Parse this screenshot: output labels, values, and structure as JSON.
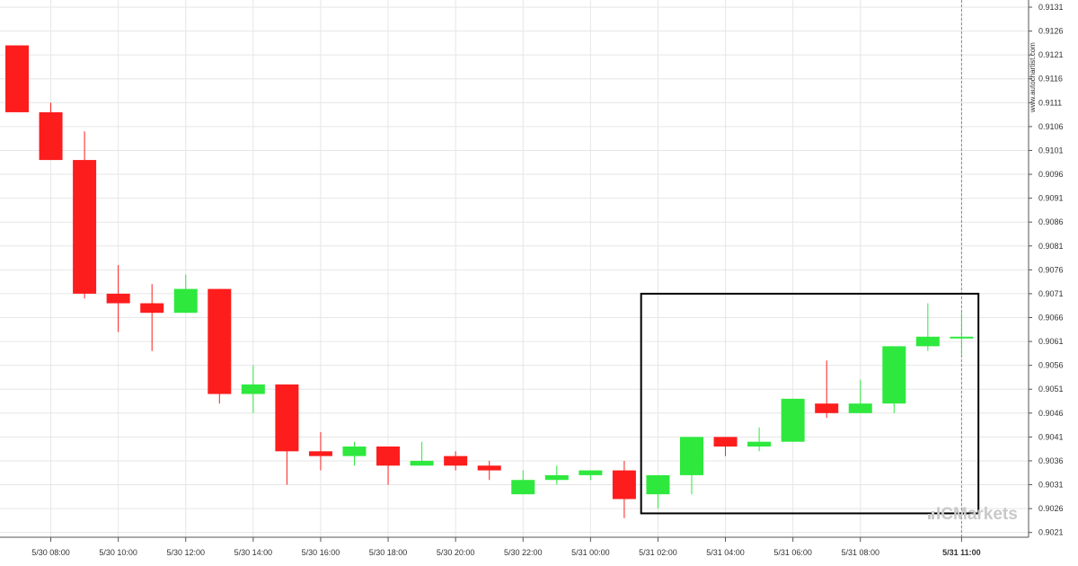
{
  "watermark": "www.autochartist.com",
  "brand": {
    "prefix": "IC",
    "suffix": "Markets"
  },
  "colors": {
    "up": "#2ee83e",
    "down": "#fd1d1d",
    "grid": "#e6e6e6",
    "axis": "#555555",
    "pattern_box": "#000000",
    "brand": "#c9c9c9"
  },
  "chart_data": {
    "type": "candlestick",
    "y_range": [
      0.902,
      0.9131
    ],
    "y_ticks": [
      "0.9131",
      "0.9126",
      "0.9121",
      "0.9116",
      "0.9111",
      "0.9106",
      "0.9101",
      "0.9096",
      "0.9091",
      "0.9086",
      "0.9081",
      "0.9076",
      "0.9071",
      "0.9066",
      "0.9061",
      "0.9056",
      "0.9051",
      "0.9046",
      "0.9041",
      "0.9036",
      "0.9031",
      "0.9026",
      "0.9021"
    ],
    "x_ticks": [
      "5/30 08:00",
      "5/30 10:00",
      "5/30 12:00",
      "5/30 14:00",
      "5/30 16:00",
      "5/30 18:00",
      "5/30 20:00",
      "5/30 22:00",
      "5/31 00:00",
      "5/31 02:00",
      "5/31 04:00",
      "5/31 06:00",
      "5/31 08:00",
      "5/31 11:00"
    ],
    "x_tick_bold_index": 13,
    "x_tick_candle_index": [
      1,
      3,
      5,
      7,
      9,
      11,
      13,
      15,
      17,
      19,
      21,
      23,
      25,
      28
    ],
    "candles": [
      {
        "o": 0.9123,
        "h": 0.9123,
        "l": 0.9109,
        "c": 0.9109
      },
      {
        "o": 0.9109,
        "h": 0.9111,
        "l": 0.9099,
        "c": 0.9099
      },
      {
        "o": 0.9099,
        "h": 0.9105,
        "l": 0.907,
        "c": 0.9071
      },
      {
        "o": 0.9071,
        "h": 0.9077,
        "l": 0.9063,
        "c": 0.9069
      },
      {
        "o": 0.9069,
        "h": 0.9073,
        "l": 0.9059,
        "c": 0.9067
      },
      {
        "o": 0.9067,
        "h": 0.9075,
        "l": 0.9067,
        "c": 0.9072
      },
      {
        "o": 0.9072,
        "h": 0.9072,
        "l": 0.9048,
        "c": 0.905
      },
      {
        "o": 0.905,
        "h": 0.9056,
        "l": 0.9046,
        "c": 0.9052
      },
      {
        "o": 0.9052,
        "h": 0.9052,
        "l": 0.9031,
        "c": 0.9038
      },
      {
        "o": 0.9038,
        "h": 0.9042,
        "l": 0.9034,
        "c": 0.9037
      },
      {
        "o": 0.9037,
        "h": 0.904,
        "l": 0.9035,
        "c": 0.9039
      },
      {
        "o": 0.9039,
        "h": 0.9039,
        "l": 0.9031,
        "c": 0.9035
      },
      {
        "o": 0.9035,
        "h": 0.904,
        "l": 0.9035,
        "c": 0.9036
      },
      {
        "o": 0.9037,
        "h": 0.9038,
        "l": 0.9034,
        "c": 0.9035
      },
      {
        "o": 0.9035,
        "h": 0.9036,
        "l": 0.9032,
        "c": 0.9034
      },
      {
        "o": 0.9029,
        "h": 0.9034,
        "l": 0.9029,
        "c": 0.9032
      },
      {
        "o": 0.9032,
        "h": 0.9035,
        "l": 0.9031,
        "c": 0.9033
      },
      {
        "o": 0.9033,
        "h": 0.9034,
        "l": 0.9032,
        "c": 0.9034
      },
      {
        "o": 0.9034,
        "h": 0.9036,
        "l": 0.9024,
        "c": 0.9028
      },
      {
        "o": 0.9029,
        "h": 0.9033,
        "l": 0.9026,
        "c": 0.9033
      },
      {
        "o": 0.9033,
        "h": 0.9041,
        "l": 0.9029,
        "c": 0.9041
      },
      {
        "o": 0.9041,
        "h": 0.9041,
        "l": 0.9037,
        "c": 0.9039
      },
      {
        "o": 0.9039,
        "h": 0.9043,
        "l": 0.9038,
        "c": 0.904
      },
      {
        "o": 0.904,
        "h": 0.9049,
        "l": 0.904,
        "c": 0.9049
      },
      {
        "o": 0.9048,
        "h": 0.9057,
        "l": 0.9045,
        "c": 0.9046
      },
      {
        "o": 0.9046,
        "h": 0.9053,
        "l": 0.9046,
        "c": 0.9048
      },
      {
        "o": 0.9048,
        "h": 0.906,
        "l": 0.9046,
        "c": 0.906
      },
      {
        "o": 0.906,
        "h": 0.9069,
        "l": 0.9059,
        "c": 0.9062
      },
      {
        "o": 0.9062,
        "h": 0.9067,
        "l": 0.9058,
        "c": 0.9062
      }
    ],
    "pattern_box": {
      "from_index": 18.5,
      "to_index": 28.5,
      "top": 0.9071,
      "bottom": 0.9025
    },
    "current_candle_marker_index": 28
  }
}
